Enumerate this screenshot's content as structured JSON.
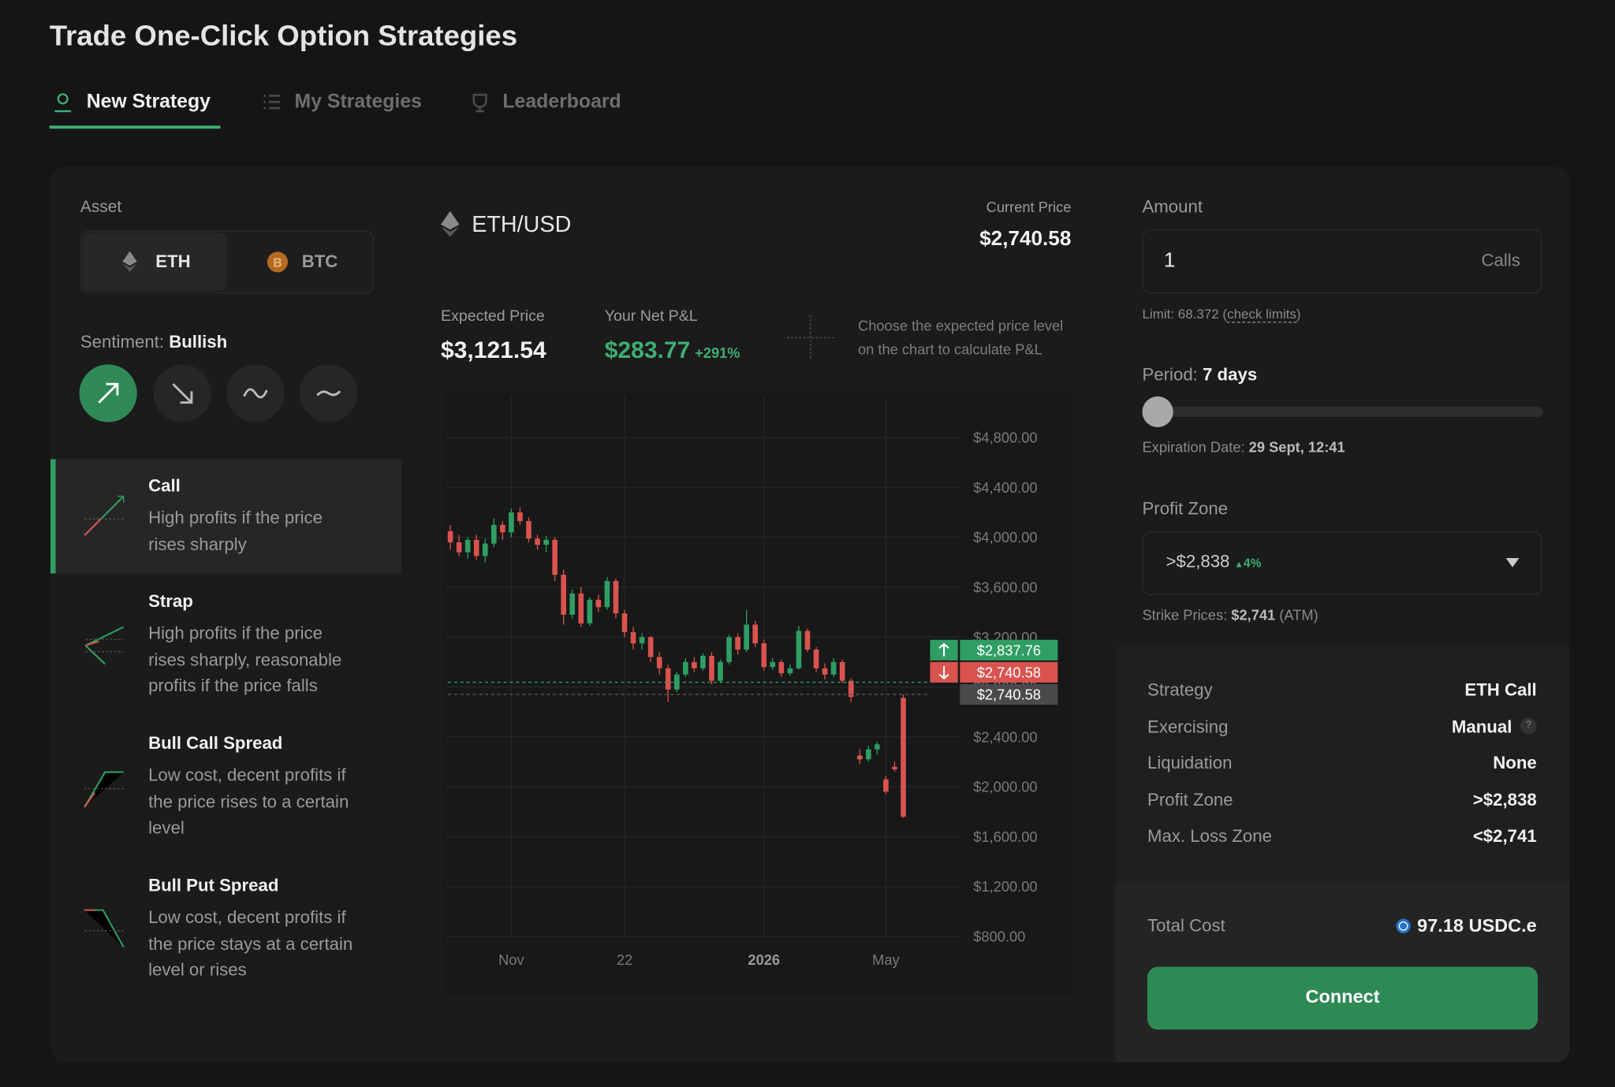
{
  "header": {
    "title": "Trade One-Click Option Strategies"
  },
  "tabs": [
    "New Strategy",
    "My Strategies",
    "Leaderboard"
  ],
  "asset": {
    "label": "Asset",
    "options": [
      "ETH",
      "BTC"
    ]
  },
  "sentiment": {
    "label": "Sentiment:",
    "value": "Bullish"
  },
  "strategies": [
    {
      "name": "Call",
      "description": [
        "High profits if the price",
        "rises sharply"
      ]
    },
    {
      "name": "Strap",
      "description": [
        "High profits if the price",
        "rises sharply, reasonable",
        "profits if the price falls"
      ]
    },
    {
      "name": "Bull Call Spread",
      "description": [
        "Low cost, decent profits if",
        "the price rises to a certain",
        "level"
      ]
    },
    {
      "name": "Bull Put Spread",
      "description": [
        "Low cost, decent profits if",
        "the price stays at a certain",
        "level or rises"
      ]
    }
  ],
  "market": {
    "pair": "ETH/USD",
    "current_price_label": "Current Price",
    "current_price": "$2,740.58",
    "expected_price_label": "Expected Price",
    "expected_price": "$3,121.54",
    "pnl_label": "Your Net P&L",
    "pnl": "$283.77",
    "pnl_pct": "+291%",
    "hint": [
      "Choose the expected price level",
      "on the chart to calculate P&L"
    ]
  },
  "chart_data": {
    "type": "candlestick",
    "colors": {
      "up": "#2f9e64",
      "down": "#d9534f"
    },
    "grid": true,
    "xlim": [
      -0.5,
      58.5
    ],
    "xticks": [
      {
        "value": 7,
        "label": "Nov"
      },
      {
        "value": 20,
        "label": "22"
      },
      {
        "value": 36,
        "label": "2026"
      },
      {
        "value": 50,
        "label": "May"
      }
    ],
    "ylim": [
      780,
      5130
    ],
    "yticks": [
      {
        "value": 800,
        "label": "$800.00"
      },
      {
        "value": 1200,
        "label": "$1,200.00"
      },
      {
        "value": 1600,
        "label": "$1,600.00"
      },
      {
        "value": 2000,
        "label": "$2,000.00"
      },
      {
        "value": 2400,
        "label": "$2,400.00"
      },
      {
        "value": 2800,
        "label": "$2,800.00"
      },
      {
        "value": 3200,
        "label": "$3,200.00"
      },
      {
        "value": 3600,
        "label": "$3,600.00"
      },
      {
        "value": 4000,
        "label": "$4,000.00"
      },
      {
        "value": 4400,
        "label": "$4,400.00"
      },
      {
        "value": 4800,
        "label": "$4,800.00"
      }
    ],
    "candles": [
      [
        4050,
        4100,
        3900,
        3960
      ],
      [
        3960,
        4020,
        3850,
        3880
      ],
      [
        3880,
        4000,
        3830,
        3980
      ],
      [
        3980,
        4020,
        3820,
        3850
      ],
      [
        3850,
        3990,
        3800,
        3950
      ],
      [
        3950,
        4150,
        3920,
        4100
      ],
      [
        4100,
        4130,
        3980,
        4040
      ],
      [
        4040,
        4230,
        4000,
        4200
      ],
      [
        4200,
        4240,
        4100,
        4130
      ],
      [
        4130,
        4160,
        3960,
        3990
      ],
      [
        3990,
        4020,
        3900,
        3940
      ],
      [
        3940,
        4010,
        3880,
        3980
      ],
      [
        3980,
        4000,
        3650,
        3700
      ],
      [
        3700,
        3740,
        3300,
        3380
      ],
      [
        3380,
        3580,
        3350,
        3550
      ],
      [
        3550,
        3600,
        3280,
        3310
      ],
      [
        3310,
        3520,
        3290,
        3500
      ],
      [
        3500,
        3540,
        3400,
        3440
      ],
      [
        3440,
        3680,
        3420,
        3650
      ],
      [
        3650,
        3670,
        3350,
        3390
      ],
      [
        3390,
        3420,
        3200,
        3240
      ],
      [
        3240,
        3280,
        3100,
        3150
      ],
      [
        3150,
        3230,
        3100,
        3200
      ],
      [
        3200,
        3210,
        3000,
        3040
      ],
      [
        3040,
        3080,
        2900,
        2950
      ],
      [
        2950,
        2980,
        2680,
        2780
      ],
      [
        2780,
        2920,
        2760,
        2900
      ],
      [
        2900,
        3030,
        2880,
        3000
      ],
      [
        3000,
        3040,
        2920,
        2950
      ],
      [
        2950,
        3070,
        2930,
        3050
      ],
      [
        3050,
        3080,
        2820,
        2850
      ],
      [
        2850,
        3020,
        2830,
        3000
      ],
      [
        3000,
        3220,
        2980,
        3200
      ],
      [
        3200,
        3230,
        3060,
        3100
      ],
      [
        3100,
        3420,
        3080,
        3300
      ],
      [
        3300,
        3330,
        3120,
        3150
      ],
      [
        3150,
        3180,
        2930,
        2960
      ],
      [
        2960,
        3030,
        2940,
        3000
      ],
      [
        3000,
        3020,
        2880,
        2910
      ],
      [
        2910,
        2980,
        2890,
        2950
      ],
      [
        2950,
        3290,
        2940,
        3250
      ],
      [
        3250,
        3270,
        3080,
        3100
      ],
      [
        3100,
        3120,
        2920,
        2950
      ],
      [
        2950,
        2990,
        2860,
        2900
      ],
      [
        2900,
        3030,
        2880,
        3000
      ],
      [
        3000,
        3020,
        2830,
        2850
      ],
      [
        2850,
        2870,
        2680,
        2720
      ],
      [
        2250,
        2300,
        2180,
        2220
      ],
      [
        2220,
        2330,
        2200,
        2300
      ],
      [
        2300,
        2360,
        2260,
        2340
      ],
      [
        2060,
        2090,
        1940,
        1960
      ],
      [
        2160,
        2200,
        2120,
        2140
      ],
      [
        2713,
        2740,
        1749,
        1760
      ]
    ],
    "price_lines": [
      {
        "value": 2837.76,
        "label": "$2,837.76",
        "color": "#2f9e64"
      },
      {
        "value": 2740.58,
        "label": "$2,740.58",
        "color": "#d9534f"
      },
      {
        "value": 2740.58,
        "label": "$2,740.58",
        "color": "#4a4a4a"
      }
    ]
  },
  "order": {
    "amount_label": "Amount",
    "amount": "1",
    "amount_unit": "Calls",
    "limit_prefix": "Limit: 68.372 (",
    "limit_link": "check limits",
    "limit_suffix": ")",
    "period_label": "Period:",
    "period": "7 days",
    "expiration_label": "Expiration Date:",
    "expiration": "29 Sept, 12:41",
    "profit_zone_label": "Profit Zone",
    "profit_zone": ">$2,838",
    "profit_zone_change": "4%",
    "strike_label": "Strike Prices:",
    "strike": "$2,741",
    "strike_note": "(ATM)"
  },
  "summary": [
    {
      "label": "Strategy",
      "value": "ETH Call"
    },
    {
      "label": "Exercising",
      "value": "Manual"
    },
    {
      "label": "Liquidation",
      "value": "None"
    },
    {
      "label": "Profit Zone",
      "value": ">$2,838"
    },
    {
      "label": "Max. Loss Zone",
      "value": "<$2,741"
    }
  ],
  "total": {
    "label": "Total Cost",
    "value": "97.18 USDC.e"
  },
  "button": "Connect"
}
